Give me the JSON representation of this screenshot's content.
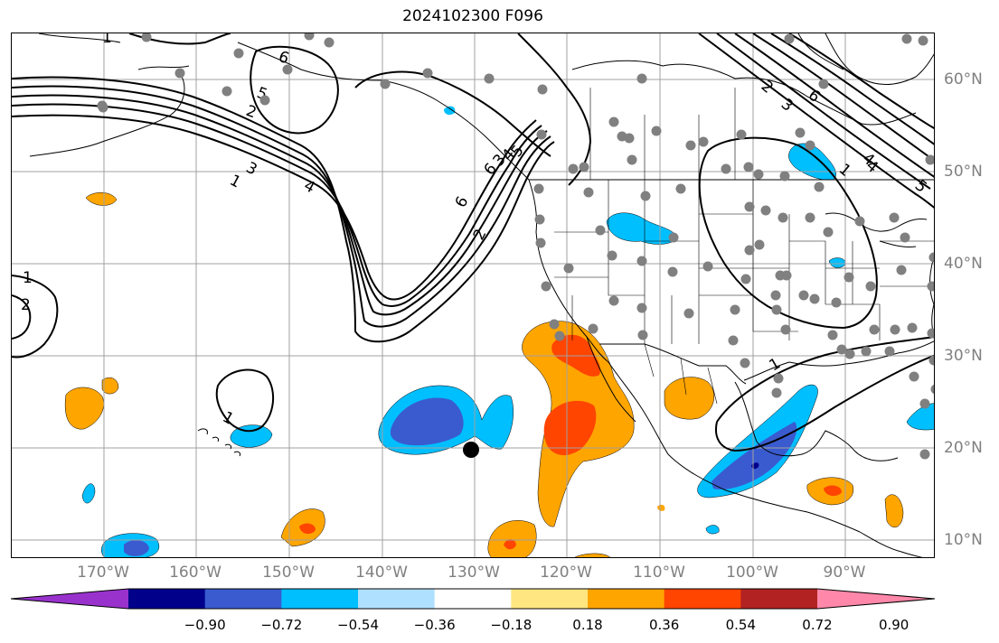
{
  "title": "2024102300 F096",
  "longitude_labels": [
    "170°W",
    "160°W",
    "150°W",
    "140°W",
    "130°W",
    "120°W",
    "110°W",
    "100°W",
    "90°W"
  ],
  "latitude_labels": [
    "60°N",
    "50°N",
    "40°N",
    "30°N",
    "20°N",
    "10°N"
  ],
  "colorbar": {
    "colors": [
      "#9932cc",
      "#00008b",
      "#3a5bcf",
      "#00bfff",
      "#b0e0ff",
      "#ffffff",
      "#ffe680",
      "#ffa500",
      "#ff4500",
      "#b22222",
      "#ff88aa"
    ],
    "tick_labels": [
      "−0.90",
      "−0.72",
      "−0.54",
      "−0.36",
      "−0.18",
      "0.18",
      "0.36",
      "0.54",
      "0.72",
      "0.90"
    ]
  },
  "contour_labels": [
    "1",
    "2",
    "3",
    "4",
    "5",
    "6",
    "1",
    "2",
    "3",
    "4",
    "5",
    "6",
    "1",
    "1",
    "1",
    "2",
    "1",
    "4",
    "6",
    "6",
    "2",
    "3",
    "4",
    "5"
  ],
  "markers": {
    "station_color": "#808080",
    "center_marker_color": "#000000"
  },
  "fill_colors": {
    "orange": "#ffa500",
    "red_orange": "#ff4500",
    "light_blue": "#00bfff",
    "royal_blue": "#3a5bcf",
    "navy": "#00008b"
  }
}
